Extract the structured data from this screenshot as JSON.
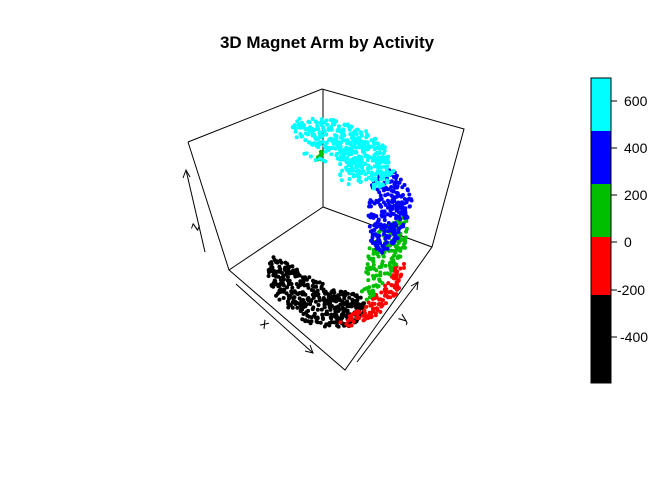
{
  "chart_data": {
    "type": "scatter",
    "title": "3D Magnet Arm by Activity",
    "axes": {
      "x": "x",
      "y": "y",
      "z": "z"
    },
    "colorbar": {
      "ticks": [
        "600",
        "400",
        "200",
        "0",
        "-200",
        "-400"
      ],
      "bins": [
        {
          "range": [
            500,
            700
          ],
          "color": "#00ffff"
        },
        {
          "range": [
            300,
            500
          ],
          "color": "#0000ff"
        },
        {
          "range": [
            100,
            300
          ],
          "color": "#00bf00"
        },
        {
          "range": [
            -100,
            100
          ],
          "color": "#ff0000"
        },
        {
          "range": [
            -300,
            -100
          ],
          "color": "#000000"
        },
        {
          "range": [
            -600,
            -300
          ],
          "color": "#000000"
        }
      ]
    },
    "clusters": [
      {
        "name": "cyan",
        "color": "#00ffff"
      },
      {
        "name": "blue",
        "color": "#0000ff"
      },
      {
        "name": "green",
        "color": "#00bf00"
      },
      {
        "name": "red",
        "color": "#ff0000"
      },
      {
        "name": "black",
        "color": "#000000"
      }
    ],
    "grid": false,
    "legend": "right"
  }
}
